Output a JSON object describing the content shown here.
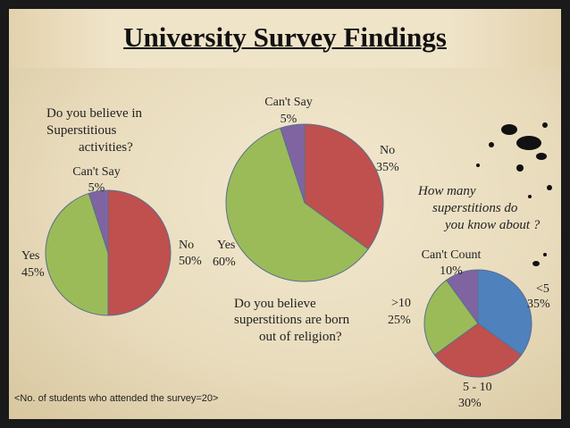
{
  "title": "University Survey Findings",
  "footnote": "<No. of students who attended the survey=20>",
  "chart_data": [
    {
      "type": "pie",
      "title": "Do you believe in Superstitious activities?",
      "slices": [
        {
          "label": "No",
          "value": 50,
          "pct_text": "50%",
          "color": "#c0504d"
        },
        {
          "label": "Yes",
          "value": 45,
          "pct_text": "45%",
          "color": "#9bbb59"
        },
        {
          "label": "Can't Say",
          "value": 5,
          "pct_text": "5%",
          "color": "#8064a2"
        }
      ]
    },
    {
      "type": "pie",
      "title": "Do you believe superstitions are born out of religion?",
      "slices": [
        {
          "label": "No",
          "value": 35,
          "pct_text": "35%",
          "color": "#c0504d"
        },
        {
          "label": "Yes",
          "value": 60,
          "pct_text": "60%",
          "color": "#9bbb59"
        },
        {
          "label": "Can't Say",
          "value": 5,
          "pct_text": "5%",
          "color": "#8064a2"
        }
      ]
    },
    {
      "type": "pie",
      "title": "How many superstitions do you know about ?",
      "slices": [
        {
          "label": "<5",
          "value": 35,
          "pct_text": "35%",
          "color": "#4f81bd"
        },
        {
          "label": "5 - 10",
          "value": 30,
          "pct_text": "30%",
          "color": "#c0504d"
        },
        {
          "label": ">10",
          "value": 25,
          "pct_text": "25%",
          "color": "#9bbb59"
        },
        {
          "label": "Can't Count",
          "value": 10,
          "pct_text": "10%",
          "color": "#8064a2"
        }
      ]
    }
  ]
}
